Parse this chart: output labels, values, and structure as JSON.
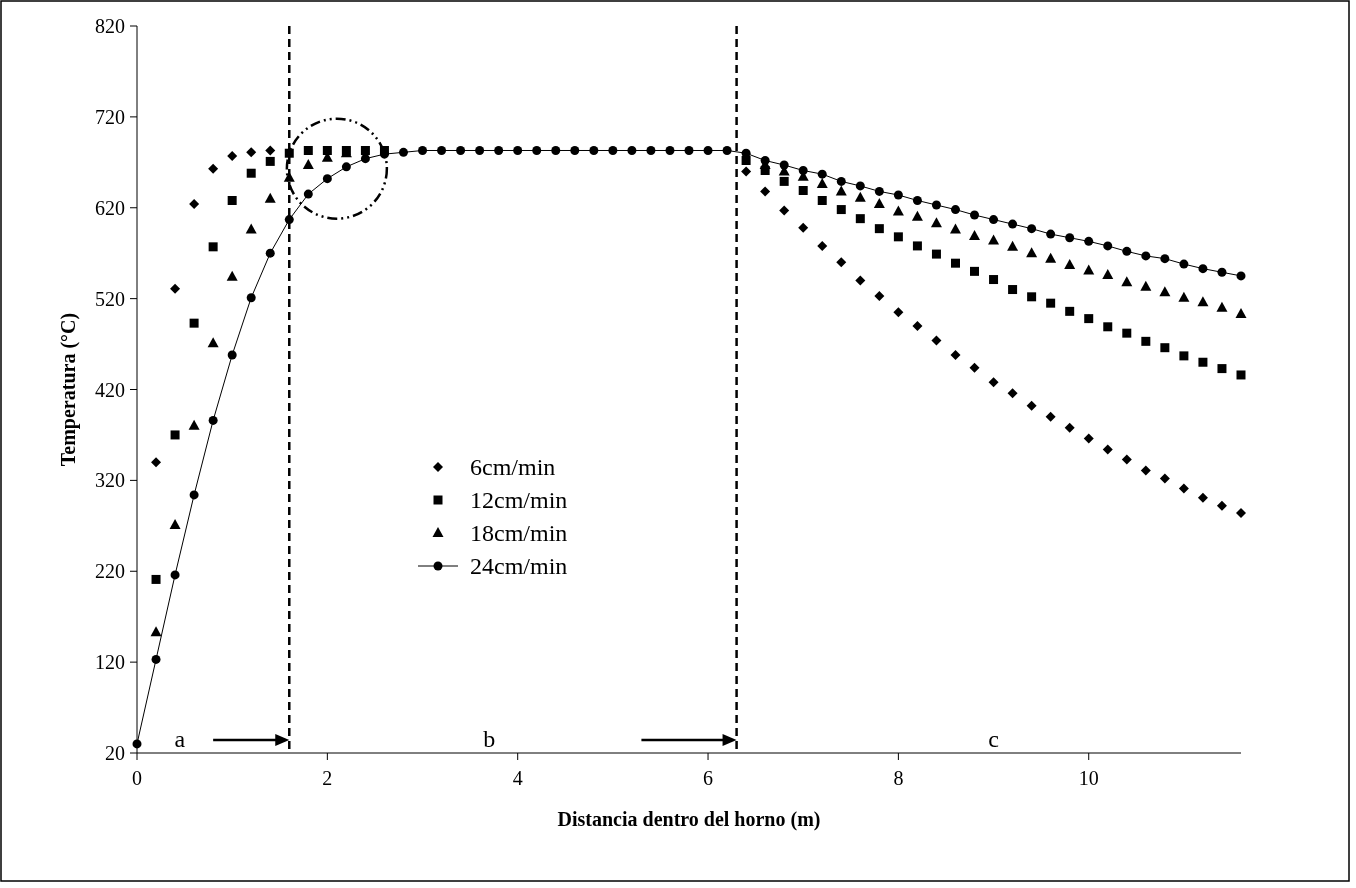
{
  "chart_data": {
    "type": "scatter",
    "xlabel": "Distancia dentro del horno (m)",
    "ylabel": "Temperatura (°C)",
    "x": [
      0,
      0.2,
      0.4,
      0.6,
      0.8,
      1,
      1.2,
      1.4,
      1.6,
      1.8,
      2,
      2.2,
      2.4,
      2.6,
      2.8,
      3,
      3.2,
      3.4,
      3.6,
      3.8,
      4,
      4.2,
      4.4,
      4.6,
      4.8,
      5,
      5.2,
      5.4,
      5.6,
      5.8,
      6,
      6.2,
      6.4,
      6.6,
      6.8,
      7,
      7.2,
      7.4,
      7.6,
      7.8,
      8,
      8.2,
      8.4,
      8.6,
      8.8,
      9,
      9.2,
      9.4,
      9.6,
      9.8,
      10,
      10.2,
      10.4,
      10.6,
      10.8,
      11,
      11.2,
      11.4,
      11.6
    ],
    "series": [
      {
        "name": "6cm/min",
        "marker": "diamond",
        "color": "#000000",
        "values": [
          null,
          340,
          531,
          624,
          663,
          677,
          681,
          683,
          null,
          null,
          null,
          null,
          null,
          null,
          null,
          null,
          null,
          null,
          null,
          null,
          null,
          null,
          null,
          null,
          null,
          null,
          null,
          null,
          null,
          null,
          null,
          null,
          660,
          638,
          617,
          598,
          578,
          560,
          540,
          523,
          505,
          490,
          474,
          458,
          444,
          428,
          416,
          402,
          390,
          378,
          366,
          354,
          343,
          331,
          322,
          311,
          301,
          292,
          284
        ]
      },
      {
        "name": "12cm/min",
        "marker": "square",
        "color": "#000000",
        "values": [
          null,
          211,
          370,
          493,
          577,
          628,
          658,
          671,
          680,
          683,
          683,
          683,
          683,
          683,
          null,
          null,
          null,
          null,
          null,
          null,
          null,
          null,
          null,
          null,
          null,
          null,
          null,
          null,
          null,
          null,
          null,
          null,
          672,
          661,
          649,
          639,
          628,
          618,
          608,
          597,
          588,
          578,
          569,
          559,
          550,
          541,
          530,
          522,
          515,
          506,
          498,
          489,
          482,
          473,
          466,
          457,
          450,
          443,
          436
        ]
      },
      {
        "name": "18cm/min",
        "marker": "triangle",
        "color": "#000000",
        "values": [
          null,
          153,
          271,
          380,
          471,
          544,
          596,
          630,
          653,
          667,
          675,
          680,
          null,
          null,
          null,
          null,
          null,
          null,
          null,
          null,
          null,
          null,
          null,
          null,
          null,
          null,
          null,
          null,
          null,
          null,
          null,
          null,
          null,
          667,
          660,
          654,
          646,
          638,
          631,
          624,
          616,
          610,
          603,
          596,
          589,
          584,
          577,
          570,
          564,
          557,
          551,
          546,
          538,
          533,
          527,
          521,
          516,
          510,
          503
        ]
      },
      {
        "name": "24cm/min",
        "type": "line",
        "marker": "circle",
        "color": "#000000",
        "values": [
          30,
          123,
          216,
          304,
          386,
          458,
          521,
          570,
          607,
          635,
          652,
          665,
          674,
          679,
          681,
          683,
          683,
          683,
          683,
          683,
          683,
          683,
          683,
          683,
          683,
          683,
          683,
          683,
          683,
          683,
          683,
          683,
          680,
          672,
          667,
          661,
          657,
          649,
          644,
          638,
          634,
          628,
          623,
          618,
          612,
          607,
          602,
          597,
          591,
          587,
          583,
          578,
          572,
          567,
          564,
          558,
          553,
          549,
          545
        ]
      }
    ],
    "xlim": [
      0,
      11.6
    ],
    "xticks": [
      0,
      2,
      4,
      6,
      8,
      10
    ],
    "ylim": [
      20,
      820
    ],
    "yticks": [
      20,
      120,
      220,
      320,
      420,
      520,
      620,
      720,
      820
    ],
    "ref_lines": [
      {
        "axis": "x",
        "value": 1.6,
        "color": "#000000",
        "line_style": "dashed"
      },
      {
        "axis": "x",
        "value": 6.3,
        "color": "#000000",
        "line_style": "dashed"
      }
    ],
    "annotations": [
      "a",
      "b",
      "c"
    ],
    "legend": "center",
    "grid": false
  }
}
